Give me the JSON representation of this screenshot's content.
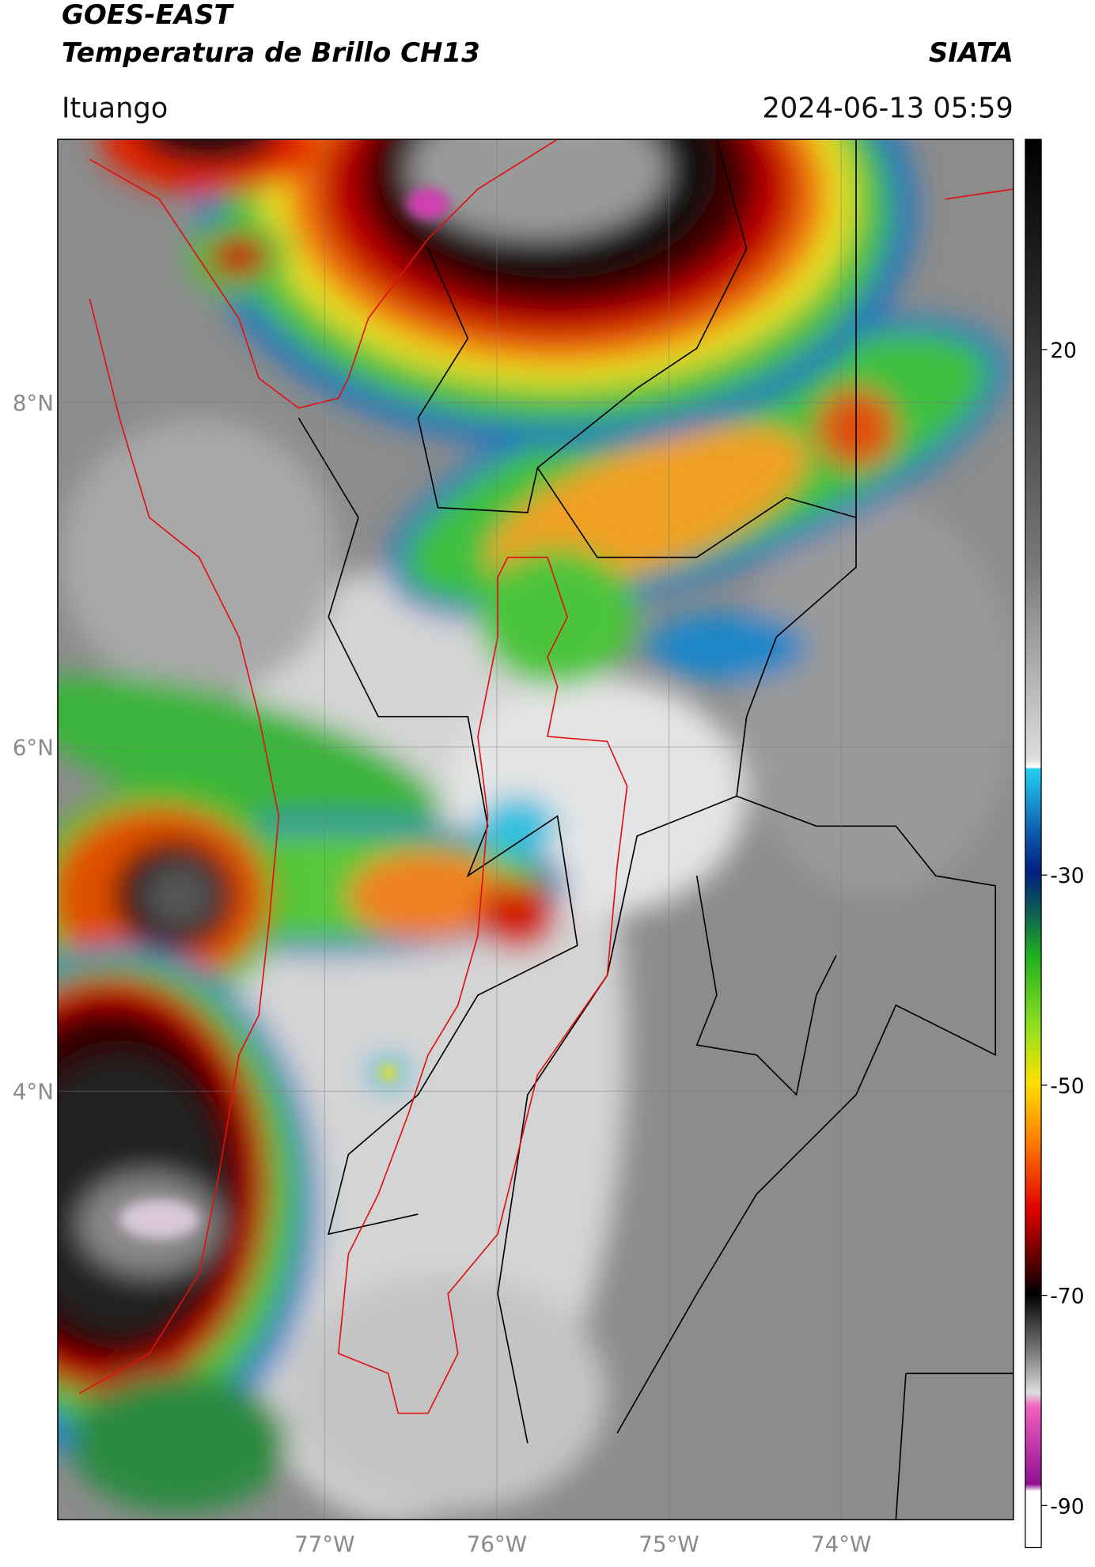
{
  "header": {
    "title": "GOES-EAST",
    "subtitle": "Temperatura de Brillo CH13",
    "agency": "SIATA",
    "location": "Ituango",
    "datetime": "2024-06-13 05:59"
  },
  "map": {
    "lonlim": [
      -78.55,
      -73.0
    ],
    "latlim": [
      1.51,
      9.53
    ],
    "lonticks": [
      {
        "value": -77,
        "label": "77°W"
      },
      {
        "value": -76,
        "label": "76°W"
      },
      {
        "value": -75,
        "label": "75°W"
      },
      {
        "value": -74,
        "label": "74°W"
      }
    ],
    "latticks": [
      {
        "value": 8,
        "label": "8°N"
      },
      {
        "value": 6,
        "label": "6°N"
      },
      {
        "value": 4,
        "label": "4°N"
      }
    ],
    "grid": true
  },
  "colorbar": {
    "lim": [
      -94,
      40
    ],
    "ticks": [
      20,
      -30,
      -50,
      -70,
      -90
    ]
  }
}
